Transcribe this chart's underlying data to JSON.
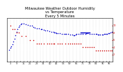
{
  "title": "Milwaukee Weather Outdoor Humidity\nvs Temperature\nEvery 5 Minutes",
  "title_fontsize": 3.8,
  "title_color": "#000000",
  "background_color": "#ffffff",
  "blue_color": "#0000cc",
  "red_color": "#cc0000",
  "grid_color": "#aaaaaa",
  "dot_size": 1.2,
  "blue_data_x": [
    2,
    3,
    4,
    5,
    6,
    7,
    8,
    9,
    10,
    11,
    12,
    13,
    14,
    16,
    18,
    20,
    22,
    24,
    25,
    26,
    28,
    30,
    32,
    33,
    35,
    36,
    38,
    40,
    42,
    44,
    45,
    46,
    47,
    48,
    50,
    52,
    54,
    55,
    56,
    58,
    60,
    62,
    63,
    64,
    65,
    66,
    68,
    70,
    72,
    74,
    75,
    76,
    78,
    80,
    82,
    84,
    85,
    86,
    87,
    88,
    90,
    91,
    92,
    93,
    94,
    95,
    96,
    97,
    98,
    99
  ],
  "blue_data_y": [
    28,
    32,
    36,
    40,
    46,
    52,
    60,
    68,
    74,
    79,
    83,
    86,
    88,
    87,
    86,
    84,
    83,
    82,
    80,
    78,
    77,
    76,
    75,
    74,
    73,
    72,
    71,
    70,
    69,
    68,
    67,
    67,
    66,
    65,
    65,
    64,
    64,
    64,
    63,
    63,
    62,
    62,
    61,
    61,
    62,
    63,
    63,
    63,
    64,
    64,
    65,
    65,
    64,
    64,
    64,
    63,
    63,
    62,
    62,
    62,
    62,
    62,
    63,
    63,
    64,
    64,
    65,
    66,
    67,
    68
  ],
  "blue_hline_x": [
    70,
    78
  ],
  "blue_hline_y": 67,
  "red_data_x": [
    3,
    5,
    7,
    9,
    11,
    14,
    18,
    22,
    25,
    28,
    30,
    32,
    35,
    38,
    40,
    42,
    44,
    45,
    48,
    50,
    52,
    55,
    58,
    60,
    62,
    64,
    66,
    68,
    70,
    72,
    74,
    76,
    78,
    80,
    82,
    84,
    86,
    88,
    90,
    92,
    94,
    96,
    98,
    99
  ],
  "red_data_y": [
    10,
    9,
    9,
    8,
    8,
    7,
    7,
    6,
    6,
    5,
    5,
    5,
    5,
    5,
    5,
    5,
    5,
    5,
    5,
    5,
    5,
    5,
    5,
    5,
    5,
    5,
    5,
    5,
    5,
    4,
    4,
    4,
    4,
    4,
    4,
    3,
    3,
    3,
    3,
    3,
    3,
    3,
    3,
    3
  ],
  "num_vgrid_lines": 32,
  "ylim_left": [
    0,
    100
  ],
  "ylim_right": [
    0,
    12
  ],
  "xlim": [
    0,
    100
  ],
  "yticks_left": [
    20,
    40,
    60,
    80
  ],
  "yticks_right": [
    2,
    4,
    6,
    8,
    10
  ],
  "xtick_count": 32,
  "tick_labelsize": 2.5
}
